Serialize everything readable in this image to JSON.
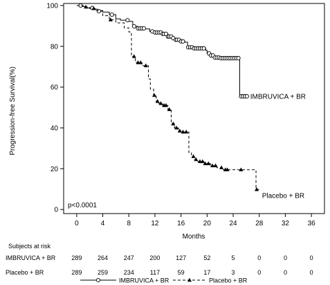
{
  "chart_data": {
    "type": "line",
    "title": "",
    "xlabel": "Months",
    "ylabel": "Progression-free Survival(%)",
    "xlim": [
      -2,
      38
    ],
    "ylim": [
      -2,
      101
    ],
    "x_ticks": [
      0,
      4,
      8,
      12,
      16,
      20,
      24,
      28,
      32,
      36
    ],
    "y_ticks": [
      0,
      20,
      40,
      60,
      80,
      100
    ],
    "p_value": "p<0.0001",
    "legend_placement": "bottom",
    "series": [
      {
        "name": "IMBRUVICA + BR",
        "line_style": "solid",
        "marker": "open-circle",
        "color": "#000000",
        "label_at_end": "IMBRUVICA + BR",
        "steps": [
          [
            0,
            100
          ],
          [
            0.8,
            99.5
          ],
          [
            1.5,
            98.8
          ],
          [
            2.5,
            98.2
          ],
          [
            3.2,
            97.2
          ],
          [
            4,
            96.8
          ],
          [
            5,
            95.5
          ],
          [
            6,
            93.5
          ],
          [
            6.7,
            92.8
          ],
          [
            8,
            92.2
          ],
          [
            8.6,
            89.8
          ],
          [
            9.3,
            88.8
          ],
          [
            10.5,
            88.5
          ],
          [
            11.2,
            87.3
          ],
          [
            12,
            86.8
          ],
          [
            13,
            86.1
          ],
          [
            14,
            84.8
          ],
          [
            14.6,
            84
          ],
          [
            15.2,
            83.2
          ],
          [
            16,
            82.4
          ],
          [
            16.6,
            82
          ],
          [
            17,
            79.5
          ],
          [
            18,
            79
          ],
          [
            19.8,
            78
          ],
          [
            20,
            76.5
          ],
          [
            20.6,
            75.5
          ],
          [
            21,
            74.5
          ],
          [
            22,
            74.2
          ],
          [
            25,
            55.5
          ],
          [
            26.3,
            55.5
          ]
        ],
        "censor_x": [
          0.6,
          2.4,
          3.4,
          5.4,
          7.8,
          8.8,
          9.4,
          9.7,
          10,
          10.3,
          11.6,
          12,
          12.3,
          12.6,
          12.9,
          13.2,
          13.4,
          13.7,
          14,
          14.2,
          14.5,
          14.8,
          15.2,
          15.4,
          15.7,
          16,
          16.3,
          17.1,
          17.4,
          17.7,
          18,
          18.3,
          18.6,
          18.9,
          19.2,
          19.5,
          20.3,
          20.6,
          20.9,
          21.2,
          21.5,
          21.8,
          22.1,
          22.4,
          22.7,
          23,
          23.3,
          23.6,
          23.9,
          24.2,
          24.5,
          24.8,
          25.2,
          25.5,
          25.8,
          26.1
        ]
      },
      {
        "name": "Placebo + BR",
        "line_style": "dashed",
        "marker": "filled-triangle",
        "color": "#000000",
        "label_at_end": "Placebo + BR",
        "steps": [
          [
            0,
            100
          ],
          [
            1,
            99.3
          ],
          [
            2,
            98.5
          ],
          [
            3,
            97.5
          ],
          [
            4,
            95
          ],
          [
            5,
            93
          ],
          [
            6,
            91.5
          ],
          [
            7.3,
            89
          ],
          [
            8,
            87
          ],
          [
            8.4,
            75
          ],
          [
            9,
            72
          ],
          [
            10,
            70.5
          ],
          [
            11,
            64
          ],
          [
            11.3,
            59
          ],
          [
            11.8,
            56
          ],
          [
            12.2,
            53
          ],
          [
            12.6,
            52
          ],
          [
            13.2,
            51
          ],
          [
            14,
            49
          ],
          [
            14.5,
            42
          ],
          [
            15,
            40
          ],
          [
            15.6,
            38.5
          ],
          [
            16,
            38
          ],
          [
            17,
            38
          ],
          [
            17.2,
            28
          ],
          [
            17.6,
            26
          ],
          [
            18,
            24.5
          ],
          [
            18.6,
            23.5
          ],
          [
            19.5,
            22.5
          ],
          [
            20.5,
            21.5
          ],
          [
            21.5,
            20.5
          ],
          [
            22.5,
            19.5
          ],
          [
            27.5,
            9.8
          ],
          [
            28.1,
            9.8
          ]
        ],
        "censor_x": [
          1.4,
          2.6,
          5.2,
          8.8,
          9.4,
          9.8,
          10.6,
          11.9,
          12.4,
          12.9,
          13.4,
          13.7,
          14.2,
          14.8,
          15.3,
          15.8,
          16.3,
          16.8,
          17.9,
          18.3,
          18.9,
          19.3,
          19.7,
          20.2,
          20.8,
          21.3,
          22.2,
          22.8,
          23.1,
          25.2,
          27.6
        ]
      }
    ],
    "risk_table": {
      "heading": "Subjects at risk",
      "rows": [
        {
          "label": "IMBRUVICA + BR",
          "values": [
            289,
            264,
            247,
            200,
            127,
            52,
            5,
            0,
            0,
            0
          ]
        },
        {
          "label": "Placebo + BR",
          "values": [
            289,
            259,
            234,
            117,
            59,
            17,
            3,
            0,
            0,
            0
          ]
        }
      ]
    }
  }
}
